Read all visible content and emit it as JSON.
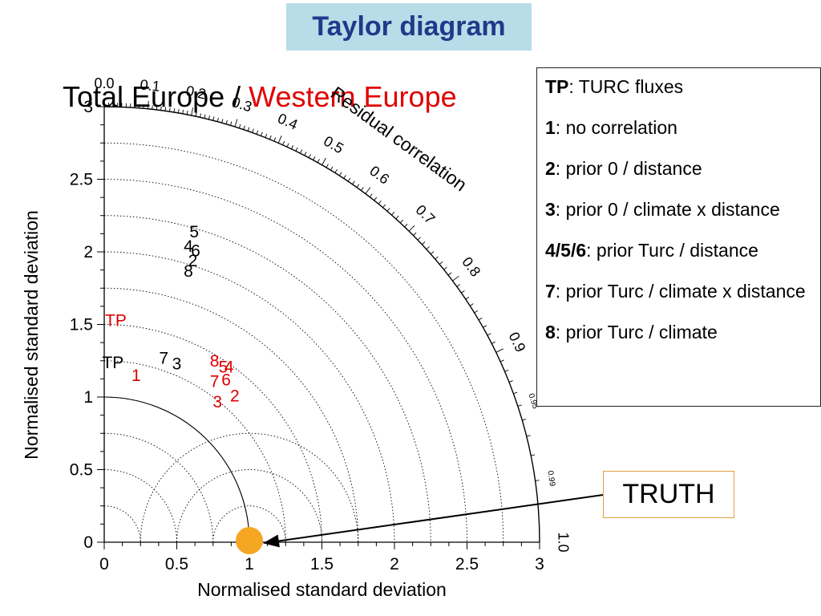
{
  "header": {
    "title": "Taylor diagram"
  },
  "subtitle": {
    "part1": "Total Europe / ",
    "part2": "Western Europe"
  },
  "legend": [
    {
      "key": "TP",
      "text": ": TURC fluxes"
    },
    {
      "key": "1",
      "text": ": no correlation"
    },
    {
      "key": "2",
      "text": ": prior 0 / distance"
    },
    {
      "key": "3",
      "text": ": prior 0 / climate x distance"
    },
    {
      "key": "4/5/6",
      "text": ": prior Turc / distance"
    },
    {
      "key": "7",
      "text": ": prior Turc / climate x distance"
    },
    {
      "key": "8",
      "text": ": prior Turc / climate"
    }
  ],
  "truth_label": "TRUTH",
  "colors": {
    "total_europe": "#000000",
    "western_europe": "#e00000",
    "truth_marker": "#f5a623"
  },
  "chart_data": {
    "type": "taylor",
    "xlabel": "Normalised standard deviation",
    "ylabel": "Normalised standard deviation",
    "arc_label": "Residual correlation",
    "xlim": [
      0,
      3
    ],
    "ylim": [
      0,
      3
    ],
    "x_ticks": [
      "0",
      "0.5",
      "1",
      "1.5",
      "2",
      "2.5",
      "3"
    ],
    "y_ticks": [
      "0",
      "0.5",
      "1",
      "1.5",
      "2",
      "2.5",
      "3"
    ],
    "correlation_ticks": [
      {
        "value": 0.0,
        "label": "0.0"
      },
      {
        "value": 0.1,
        "label": "0.1"
      },
      {
        "value": 0.2,
        "label": "0.2"
      },
      {
        "value": 0.3,
        "label": "0.3"
      },
      {
        "value": 0.4,
        "label": "0.4"
      },
      {
        "value": 0.5,
        "label": "0.5"
      },
      {
        "value": 0.6,
        "label": "0.6"
      },
      {
        "value": 0.7,
        "label": "0.7"
      },
      {
        "value": 0.8,
        "label": "0.8"
      },
      {
        "value": 0.9,
        "label": "0.9"
      },
      {
        "value": 0.95,
        "label": "0.95"
      },
      {
        "value": 0.99,
        "label": "0.99"
      },
      {
        "value": 1.0,
        "label": "1.0"
      }
    ],
    "reference": {
      "x": 1.0,
      "y": 0.0
    },
    "series": [
      {
        "name": "Total Europe",
        "color": "#000000",
        "points": [
          {
            "label": "TP",
            "x": 0.06,
            "y": 1.23
          },
          {
            "label": "7",
            "x": 0.41,
            "y": 1.26
          },
          {
            "label": "3",
            "x": 0.5,
            "y": 1.22
          },
          {
            "label": "5",
            "x": 0.62,
            "y": 2.13
          },
          {
            "label": "4",
            "x": 0.58,
            "y": 2.03
          },
          {
            "label": "6",
            "x": 0.63,
            "y": 2.0
          },
          {
            "label": "2",
            "x": 0.61,
            "y": 1.93
          },
          {
            "label": "8",
            "x": 0.58,
            "y": 1.86
          }
        ]
      },
      {
        "name": "Western Europe",
        "color": "#e00000",
        "points": [
          {
            "label": "TP",
            "x": 0.08,
            "y": 1.52
          },
          {
            "label": "1",
            "x": 0.22,
            "y": 1.14
          },
          {
            "label": "8",
            "x": 0.76,
            "y": 1.24
          },
          {
            "label": "5",
            "x": 0.82,
            "y": 1.2
          },
          {
            "label": "4",
            "x": 0.86,
            "y": 1.2
          },
          {
            "label": "7",
            "x": 0.76,
            "y": 1.1
          },
          {
            "label": "6",
            "x": 0.84,
            "y": 1.11
          },
          {
            "label": "2",
            "x": 0.9,
            "y": 1.0
          },
          {
            "label": "3",
            "x": 0.78,
            "y": 0.96
          }
        ]
      }
    ]
  }
}
